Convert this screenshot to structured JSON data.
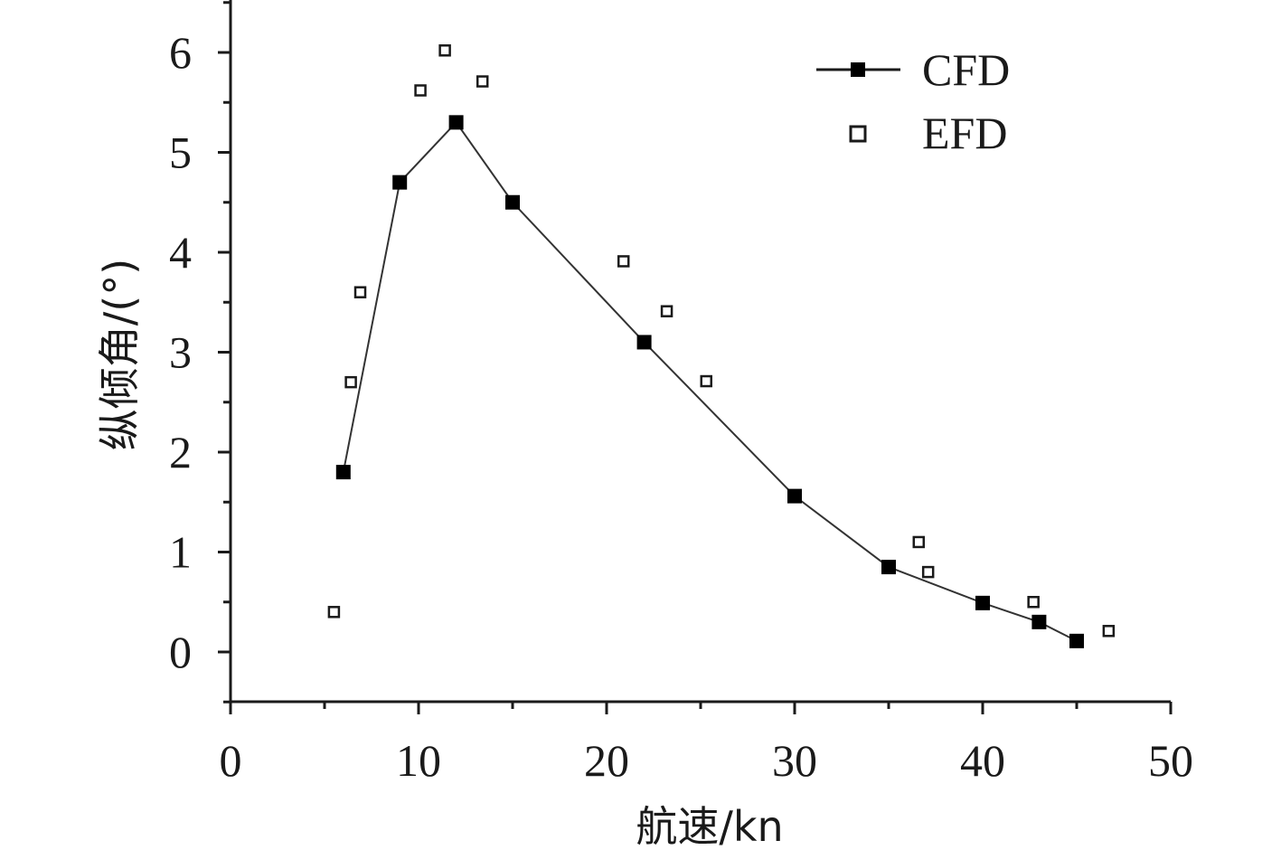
{
  "chart_data": {
    "type": "scatter",
    "title": "",
    "xlabel": "航速/kn",
    "ylabel": "纵倾角/(°)",
    "xlim": [
      0,
      50
    ],
    "ylim": [
      -0.5,
      6.5
    ],
    "xticks": [
      0,
      10,
      20,
      30,
      40,
      50
    ],
    "yticks": [
      0,
      1,
      2,
      3,
      4,
      5,
      6
    ],
    "xtick_labels": [
      "0",
      "10",
      "20",
      "30",
      "40",
      "50"
    ],
    "ytick_labels": [
      "0",
      "1",
      "2",
      "3",
      "4",
      "5",
      "6"
    ],
    "grid": false,
    "legend_position": "top-right",
    "series": [
      {
        "name": "CFD",
        "style": "line-with-filled-square-markers",
        "x": [
          6,
          9,
          12,
          15,
          22,
          30,
          35,
          40,
          43,
          45
        ],
        "y": [
          1.8,
          4.7,
          5.3,
          4.5,
          3.1,
          1.56,
          0.85,
          0.49,
          0.3,
          0.11
        ]
      },
      {
        "name": "EFD",
        "style": "open-square-markers",
        "x": [
          5.5,
          6.4,
          6.9,
          10.1,
          11.4,
          13.4,
          20.9,
          23.2,
          25.3,
          36.6,
          37.1,
          42.7,
          46.7
        ],
        "y": [
          0.4,
          2.7,
          3.6,
          5.62,
          6.02,
          5.71,
          3.91,
          3.41,
          2.71,
          1.1,
          0.8,
          0.5,
          0.21
        ]
      }
    ]
  }
}
